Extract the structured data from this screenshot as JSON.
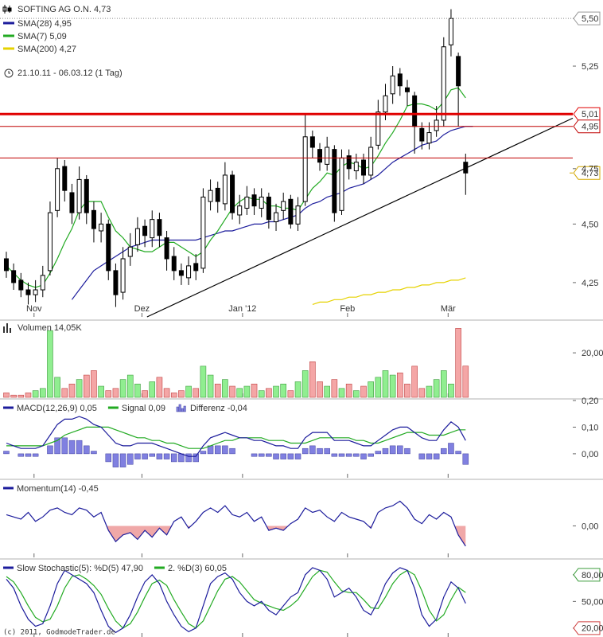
{
  "chart_data": [
    {
      "type": "candlestick",
      "title": "SOFTING AG O.N. 4,73",
      "period": "21.10.11 - 06.03.12 (1 Tag)",
      "log": true,
      "xlim": [
        -0.87,
        77.7
      ],
      "ylim": [
        4.11,
        5.6
      ],
      "xticks": [
        {
          "value": 3.8,
          "label": "Nov"
        },
        {
          "value": 18.6,
          "label": "Dez"
        },
        {
          "value": 32.4,
          "label": "Jan '12"
        },
        {
          "value": 46.8,
          "label": "Feb"
        },
        {
          "value": 60.6,
          "label": "Mär"
        }
      ],
      "yticks": [
        {
          "value": 5.5,
          "label": "5,50",
          "box": "#999999",
          "dotted": true
        },
        {
          "value": 5.25,
          "label": "5,25"
        },
        {
          "value": 4.75,
          "label": "4,75"
        },
        {
          "value": 4.5,
          "label": "4,50"
        },
        {
          "value": 4.25,
          "label": "4,25"
        }
      ],
      "open": [
        4.35,
        4.3,
        4.26,
        4.22,
        4.2,
        4.22,
        4.3,
        4.56,
        4.76,
        4.64,
        4.55,
        4.7,
        4.56,
        4.47,
        4.5,
        4.3,
        4.21,
        4.36,
        4.41,
        4.49,
        4.44,
        4.52,
        4.44,
        4.36,
        4.3,
        4.27,
        4.33,
        4.31,
        4.6,
        4.66,
        4.59,
        4.72,
        4.54,
        4.57,
        4.63,
        4.57,
        4.62,
        4.51,
        4.56,
        4.61,
        4.5,
        4.6,
        4.9,
        4.84,
        4.77,
        4.84,
        4.56,
        4.81,
        4.74,
        4.79,
        4.72,
        4.86,
        5.02,
        5.11,
        5.21,
        5.14,
        5.1,
        4.94,
        4.87,
        4.93,
        4.98,
        5.36,
        5.3,
        4.78
      ],
      "high": [
        4.38,
        4.33,
        4.29,
        4.25,
        4.26,
        4.32,
        4.6,
        4.8,
        4.79,
        4.68,
        4.76,
        4.72,
        4.6,
        4.55,
        4.52,
        4.33,
        4.4,
        4.46,
        4.53,
        4.52,
        4.56,
        4.55,
        4.47,
        4.4,
        4.33,
        4.36,
        4.37,
        4.66,
        4.7,
        4.69,
        4.78,
        4.74,
        4.63,
        4.67,
        4.66,
        4.66,
        4.64,
        4.59,
        4.64,
        4.63,
        4.62,
        5.01,
        4.93,
        4.87,
        4.9,
        4.86,
        4.84,
        4.84,
        4.82,
        4.82,
        4.9,
        5.08,
        5.16,
        5.25,
        5.24,
        5.18,
        5.12,
        4.97,
        4.97,
        5.05,
        5.4,
        5.55,
        5.32,
        4.82
      ],
      "low": [
        4.27,
        4.22,
        4.19,
        4.16,
        4.17,
        4.19,
        4.28,
        4.53,
        4.6,
        4.5,
        4.52,
        4.5,
        4.42,
        4.42,
        4.26,
        4.15,
        4.18,
        4.32,
        4.38,
        4.4,
        4.4,
        4.4,
        4.3,
        4.26,
        4.24,
        4.24,
        4.26,
        4.29,
        4.56,
        4.55,
        4.56,
        4.52,
        4.5,
        4.54,
        4.54,
        4.53,
        4.48,
        4.47,
        4.52,
        4.48,
        4.47,
        4.58,
        4.8,
        4.74,
        4.74,
        4.51,
        4.54,
        4.7,
        4.7,
        4.68,
        4.7,
        4.84,
        4.98,
        5.06,
        5.1,
        5.05,
        4.82,
        4.84,
        4.84,
        4.9,
        4.95,
        5.3,
        4.95,
        4.63
      ],
      "close": [
        4.3,
        4.25,
        4.22,
        4.2,
        4.22,
        4.28,
        4.55,
        4.75,
        4.65,
        4.55,
        4.7,
        4.55,
        4.48,
        4.5,
        4.3,
        4.2,
        4.35,
        4.4,
        4.48,
        4.45,
        4.52,
        4.45,
        4.35,
        4.3,
        4.28,
        4.32,
        4.3,
        4.62,
        4.65,
        4.6,
        4.72,
        4.55,
        4.58,
        4.62,
        4.58,
        4.62,
        4.52,
        4.55,
        4.6,
        4.5,
        4.58,
        4.9,
        4.85,
        4.78,
        4.85,
        4.55,
        4.8,
        4.75,
        4.78,
        4.72,
        4.85,
        5.02,
        5.1,
        5.2,
        5.15,
        5.12,
        4.95,
        4.88,
        4.92,
        4.98,
        5.35,
        5.5,
        5.15,
        4.73
      ],
      "series": [
        {
          "name": "SMA(28) 4,95",
          "color": "#1c1c9c",
          "values": [
            null,
            null,
            null,
            null,
            null,
            null,
            null,
            null,
            null,
            4.18,
            4.22,
            4.26,
            4.3,
            4.32,
            4.34,
            4.36,
            4.38,
            4.4,
            4.41,
            4.42,
            4.43,
            4.43,
            4.43,
            4.43,
            4.43,
            4.43,
            4.43,
            4.44,
            4.45,
            4.46,
            4.47,
            4.47,
            4.48,
            4.49,
            4.5,
            4.5,
            4.51,
            4.51,
            4.52,
            4.53,
            4.54,
            4.57,
            4.59,
            4.6,
            4.62,
            4.63,
            4.64,
            4.66,
            4.67,
            4.68,
            4.7,
            4.72,
            4.75,
            4.78,
            4.8,
            4.82,
            4.84,
            4.86,
            4.87,
            4.88,
            4.91,
            4.93,
            4.94,
            4.95,
            4.95
          ]
        },
        {
          "name": "SMA(7) 5,09",
          "color": "#22aa22",
          "values": [
            4.32,
            4.29,
            4.26,
            4.24,
            4.23,
            4.24,
            4.29,
            4.35,
            4.42,
            4.48,
            4.56,
            4.6,
            4.6,
            4.6,
            4.53,
            4.47,
            4.44,
            4.4,
            4.39,
            4.38,
            4.38,
            4.4,
            4.42,
            4.42,
            4.4,
            4.38,
            4.36,
            4.38,
            4.43,
            4.47,
            4.52,
            4.57,
            4.6,
            4.62,
            4.61,
            4.61,
            4.58,
            4.58,
            4.57,
            4.57,
            4.56,
            4.61,
            4.66,
            4.69,
            4.73,
            4.72,
            4.76,
            4.78,
            4.77,
            4.75,
            4.76,
            4.81,
            4.87,
            4.92,
            4.98,
            5.05,
            5.06,
            5.06,
            5.05,
            5.03,
            5.07,
            5.13,
            5.14,
            5.09
          ]
        },
        {
          "name": "SMA(200) 4,27",
          "color": "#e6d200",
          "values": [
            null,
            null,
            null,
            null,
            null,
            null,
            null,
            null,
            null,
            null,
            null,
            null,
            null,
            null,
            null,
            null,
            null,
            null,
            null,
            null,
            null,
            null,
            null,
            null,
            null,
            null,
            null,
            null,
            null,
            null,
            null,
            null,
            null,
            null,
            null,
            null,
            null,
            null,
            null,
            null,
            null,
            null,
            4.16,
            4.17,
            4.17,
            4.18,
            4.18,
            4.19,
            4.19,
            4.2,
            4.2,
            4.21,
            4.21,
            4.22,
            4.22,
            4.23,
            4.23,
            4.24,
            4.24,
            4.25,
            4.25,
            4.26,
            4.26,
            4.27
          ]
        }
      ],
      "levels": [
        {
          "value": 5.01,
          "label": "5,01",
          "color": "#e00000",
          "width": 3
        },
        {
          "value": 4.95,
          "label": "4,95",
          "color": "#c00000",
          "width": 1
        },
        {
          "value": 4.8,
          "color": "#c00000",
          "width": 1
        }
      ],
      "last": {
        "value": 4.73,
        "label": "4,73",
        "color": "#d4a800"
      },
      "trendline": {
        "x": [
          19.3,
          77.7
        ],
        "values": [
          4.11,
          4.99
        ],
        "color": "#000000"
      }
    },
    {
      "type": "bar",
      "title": "Volumen 14,05K",
      "xlim": [
        -0.87,
        77.7
      ],
      "ylim": [
        0,
        34000
      ],
      "yticks": [
        {
          "value": 20000,
          "label": "20,00K"
        }
      ],
      "up_color": "#90ee90",
      "down_color": "#f4a6a6",
      "values": [
        2000,
        1000,
        1000,
        2000,
        3000,
        4000,
        30000,
        9000,
        4000,
        6000,
        8000,
        10000,
        12000,
        5000,
        3000,
        4000,
        8000,
        10000,
        6000,
        3000,
        7000,
        9000,
        4000,
        2000,
        3000,
        5000,
        4000,
        14000,
        10000,
        6000,
        8000,
        5000,
        4000,
        5000,
        6000,
        3000,
        4000,
        5000,
        6000,
        3000,
        7000,
        12000,
        16000,
        7000,
        5000,
        8000,
        4000,
        6000,
        3000,
        5000,
        7000,
        9000,
        12000,
        10000,
        11000,
        6000,
        14000,
        4000,
        5000,
        8000,
        12000,
        6000,
        31000,
        14050
      ]
    },
    {
      "type": "macd",
      "xlim": [
        -0.87,
        77.7
      ],
      "ylim": [
        -0.09,
        0.2
      ],
      "yticks": [
        {
          "value": 0.2,
          "label": "0,20"
        },
        {
          "value": 0.1,
          "label": "0,10"
        },
        {
          "value": 0,
          "label": "0,00"
        }
      ],
      "series": [
        {
          "name": "MACD(12,26,9) 0,05",
          "color": "#1c1c9c",
          "values": [
            0.04,
            0.03,
            0.02,
            0.02,
            0.02,
            0.03,
            0.07,
            0.11,
            0.13,
            0.13,
            0.14,
            0.13,
            0.11,
            0.1,
            0.07,
            0.04,
            0.03,
            0.03,
            0.04,
            0.04,
            0.04,
            0.03,
            0.02,
            0.01,
            0,
            -0.01,
            -0.01,
            0.03,
            0.06,
            0.07,
            0.08,
            0.07,
            0.06,
            0.06,
            0.05,
            0.05,
            0.04,
            0.03,
            0.03,
            0.02,
            0.02,
            0.06,
            0.08,
            0.08,
            0.08,
            0.05,
            0.05,
            0.05,
            0.04,
            0.03,
            0.03,
            0.05,
            0.07,
            0.09,
            0.1,
            0.1,
            0.08,
            0.06,
            0.05,
            0.05,
            0.09,
            0.12,
            0.1,
            0.05
          ]
        },
        {
          "name": "Signal 0,09",
          "color": "#22aa22",
          "values": [
            0.03,
            0.03,
            0.03,
            0.03,
            0.03,
            0.03,
            0.04,
            0.05,
            0.07,
            0.08,
            0.09,
            0.1,
            0.1,
            0.1,
            0.1,
            0.09,
            0.08,
            0.07,
            0.06,
            0.06,
            0.05,
            0.05,
            0.04,
            0.04,
            0.03,
            0.02,
            0.02,
            0.02,
            0.03,
            0.04,
            0.05,
            0.05,
            0.06,
            0.06,
            0.06,
            0.06,
            0.05,
            0.05,
            0.05,
            0.04,
            0.04,
            0.04,
            0.05,
            0.06,
            0.06,
            0.06,
            0.06,
            0.06,
            0.05,
            0.05,
            0.04,
            0.04,
            0.05,
            0.06,
            0.07,
            0.08,
            0.08,
            0.08,
            0.07,
            0.07,
            0.07,
            0.08,
            0.09,
            0.09
          ]
        }
      ],
      "histogram": {
        "name": "Differenz -0,04",
        "color": "#8080e0",
        "values": [
          0.01,
          0,
          -0.01,
          -0.01,
          -0.01,
          0,
          0.03,
          0.06,
          0.06,
          0.05,
          0.05,
          0.03,
          0.01,
          0,
          -0.03,
          -0.05,
          -0.05,
          -0.04,
          -0.02,
          -0.02,
          -0.01,
          -0.02,
          -0.02,
          -0.03,
          -0.03,
          -0.03,
          -0.03,
          0.01,
          0.03,
          0.03,
          0.03,
          0.02,
          0,
          0,
          -0.01,
          -0.01,
          -0.01,
          -0.02,
          -0.02,
          -0.02,
          -0.02,
          0.02,
          0.03,
          0.02,
          0.02,
          -0.01,
          -0.01,
          -0.01,
          -0.01,
          -0.02,
          -0.01,
          0.01,
          0.02,
          0.03,
          0.03,
          0.02,
          0,
          -0.02,
          -0.02,
          -0.02,
          0.02,
          0.04,
          0.01,
          -0.04
        ]
      }
    },
    {
      "type": "line",
      "xlim": [
        -0.87,
        77.7
      ],
      "ylim": [
        -0.7,
        1.0
      ],
      "yticks": [
        {
          "value": 0,
          "label": "0,00"
        }
      ],
      "negative_fill": "#f0a8a8",
      "series": [
        {
          "name": "Momentum(14) -0,45",
          "color": "#1c1c9c",
          "values": [
            0.25,
            0.2,
            0.15,
            0.3,
            0.1,
            0.2,
            0.35,
            0.4,
            0.3,
            0.25,
            0.4,
            0.35,
            0.2,
            0.3,
            -0.1,
            -0.35,
            -0.2,
            -0.15,
            -0.3,
            -0.1,
            -0.25,
            -0.05,
            -0.2,
            0.1,
            0.2,
            -0.05,
            0.1,
            0.3,
            0.4,
            0.3,
            0.45,
            0.25,
            0.2,
            0.3,
            0.1,
            0.2,
            -0.1,
            -0.05,
            -0.1,
            0.05,
            0.15,
            0.4,
            0.3,
            0.35,
            0.2,
            0.1,
            0.3,
            0.2,
            0.15,
            0.1,
            -0.05,
            0.3,
            0.4,
            0.45,
            0.55,
            0.4,
            0.15,
            0.05,
            0.25,
            0.15,
            0.3,
            0.2,
            -0.2,
            -0.45
          ]
        }
      ]
    },
    {
      "type": "line",
      "xlim": [
        -0.87,
        77.7
      ],
      "ylim": [
        10,
        96
      ],
      "source": "(c) 2011, GodmodeTrader.de",
      "yticks": [
        {
          "value": 80,
          "label": "80,00",
          "box": "#3c9c3c"
        },
        {
          "value": 50,
          "label": "50,00"
        },
        {
          "value": 20,
          "label": "20,00",
          "box": "#d04040"
        }
      ],
      "series": [
        {
          "name": "Slow Stochastic(5): %D(5) 47,90",
          "color": "#1c1c9c",
          "values": [
            75,
            65,
            45,
            30,
            22,
            25,
            45,
            70,
            85,
            80,
            75,
            70,
            60,
            40,
            22,
            15,
            20,
            35,
            55,
            72,
            80,
            70,
            50,
            35,
            22,
            16,
            20,
            45,
            70,
            78,
            82,
            75,
            60,
            50,
            45,
            50,
            40,
            35,
            45,
            55,
            60,
            80,
            88,
            85,
            75,
            55,
            60,
            65,
            55,
            40,
            35,
            50,
            70,
            82,
            88,
            85,
            65,
            35,
            22,
            30,
            55,
            72,
            65,
            47.9
          ]
        },
        {
          "name": "2. %D(3) 60,05",
          "color": "#22aa22",
          "values": [
            78,
            72,
            60,
            45,
            32,
            27,
            30,
            45,
            65,
            78,
            80,
            75,
            68,
            58,
            42,
            28,
            20,
            25,
            38,
            55,
            70,
            74,
            68,
            52,
            38,
            25,
            20,
            28,
            45,
            62,
            75,
            78,
            72,
            62,
            52,
            48,
            45,
            42,
            40,
            45,
            52,
            65,
            78,
            85,
            83,
            72,
            62,
            60,
            60,
            52,
            43,
            42,
            55,
            70,
            80,
            85,
            80,
            62,
            40,
            28,
            35,
            52,
            66,
            60.05
          ]
        }
      ]
    }
  ]
}
